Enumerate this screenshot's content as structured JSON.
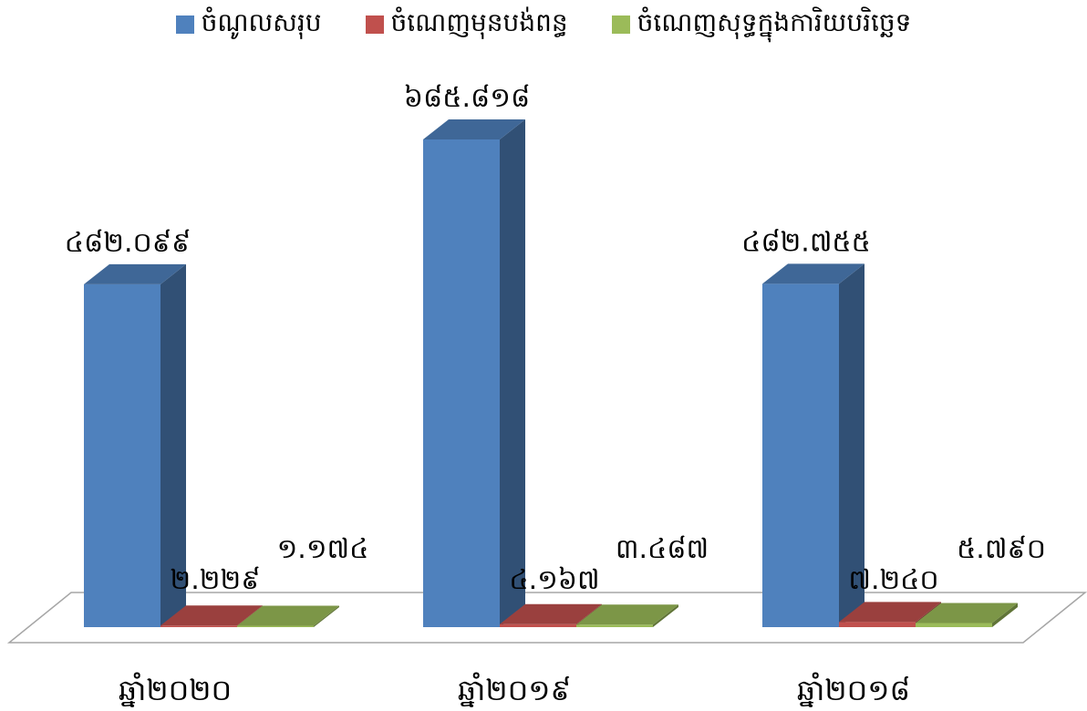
{
  "chart_data": {
    "type": "bar",
    "categories": [
      "ឆ្នាំ២០២០",
      "ឆ្នាំ២០១៩",
      "ឆ្នាំ២០១៨"
    ],
    "series": [
      {
        "name": "ចំណូលសរុប",
        "color": "#4F81BD",
        "values": [
          482.099,
          685.818,
          482.755
        ],
        "labels": [
          "៤៨២.០៩៩",
          "៦៨៥.៨១៨",
          "៤៨២.៧៥៥"
        ]
      },
      {
        "name": "ចំណេញមុនបង់ពន្ធ",
        "color": "#C0504D",
        "values": [
          2.229,
          4.167,
          7.24
        ],
        "labels": [
          "២.២២៩",
          "៤.១៦៧",
          "៧.២៤០"
        ]
      },
      {
        "name": "ចំណេញសុទ្ធក្នុងការិយបរិច្ឆេទ",
        "color": "#9BBB59",
        "values": [
          1.174,
          3.487,
          5.79
        ],
        "labels": [
          "១.១៧៤",
          "៣.៤៨៧",
          "៥.៧៩០"
        ]
      }
    ],
    "legend_position": "top",
    "grid": false,
    "ylim": [
      0,
      685.818
    ]
  }
}
